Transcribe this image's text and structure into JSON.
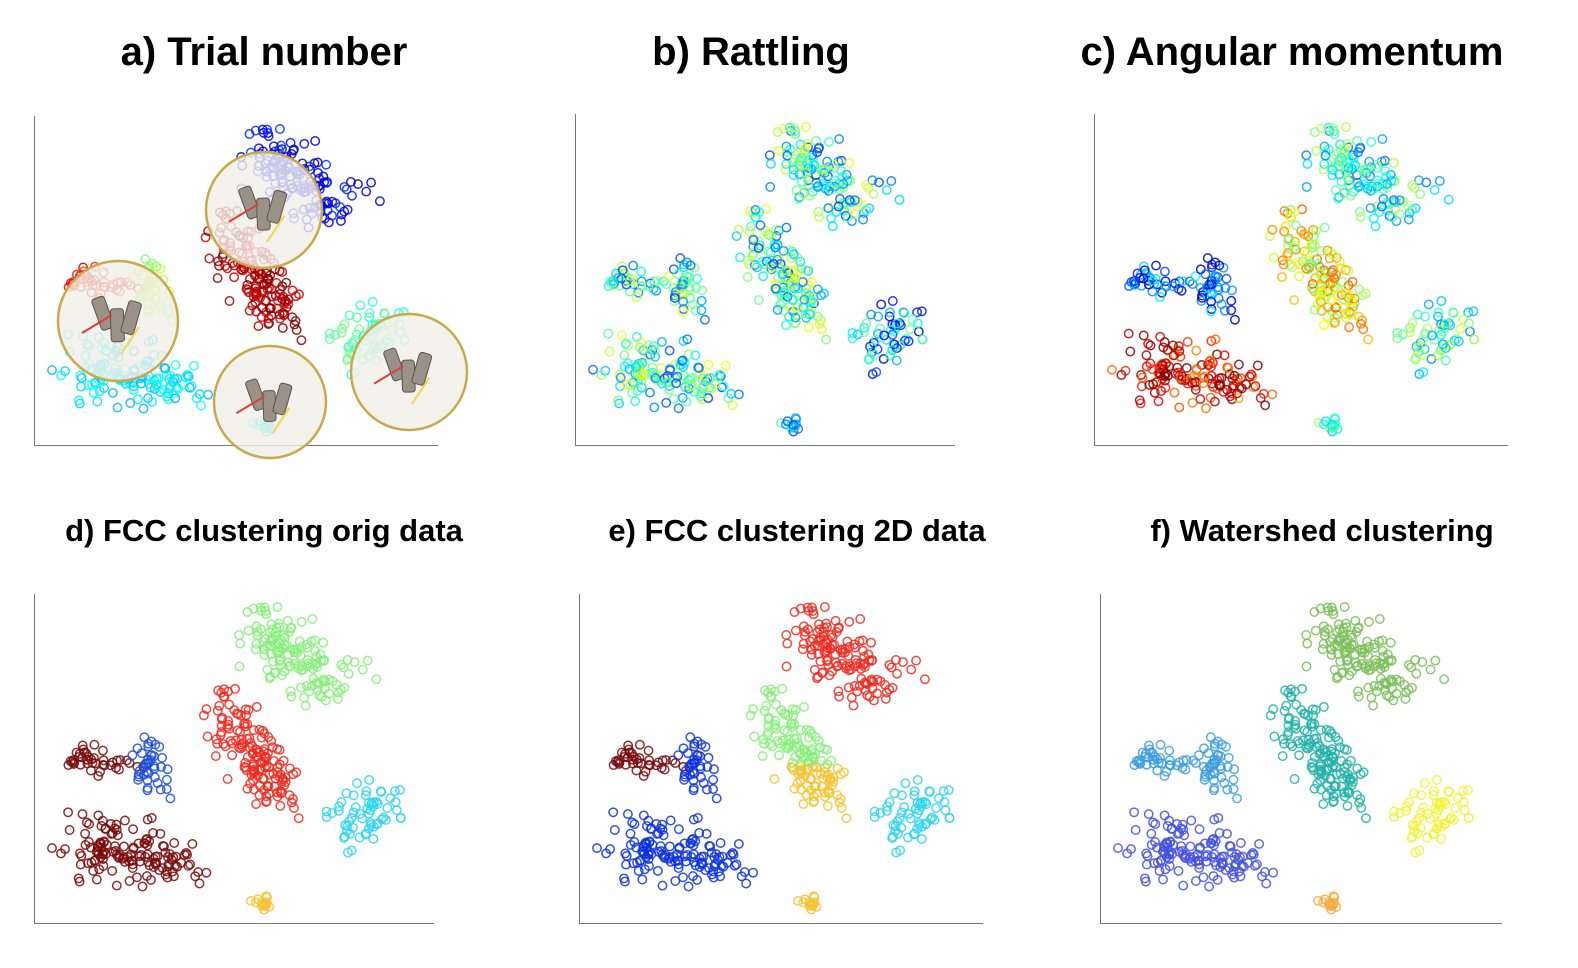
{
  "panels": [
    {
      "id": "a",
      "title": "a) Trial number"
    },
    {
      "id": "b",
      "title": "b) Rattling"
    },
    {
      "id": "c",
      "title": "c) Angular momentum"
    },
    {
      "id": "d",
      "title": "d) FCC clustering orig data"
    },
    {
      "id": "e",
      "title": "e) FCC clustering 2D data"
    },
    {
      "id": "f",
      "title": "f) Watershed clustering"
    }
  ],
  "chart_data": [
    {
      "type": "scatter",
      "title": "a) Trial number",
      "xlabel": "",
      "ylabel": "",
      "grid": false,
      "colormap": "jet",
      "inset_photos": 4
    },
    {
      "type": "scatter",
      "title": "b) Rattling",
      "xlabel": "",
      "ylabel": "",
      "grid": false,
      "colormap": "jet"
    },
    {
      "type": "scatter",
      "title": "c) Angular momentum",
      "xlabel": "",
      "ylabel": "",
      "grid": false,
      "colormap": "jet"
    },
    {
      "type": "scatter",
      "title": "d) FCC clustering orig data",
      "xlabel": "",
      "ylabel": "",
      "grid": false,
      "colors": [
        "#7a0a0a",
        "#1f4fd8",
        "#f02a20",
        "#86f07a",
        "#2fd3ef",
        "#f6c333"
      ]
    },
    {
      "type": "scatter",
      "title": "e) FCC clustering 2D data",
      "xlabel": "",
      "ylabel": "",
      "grid": false,
      "colors": [
        "#7a0a0a",
        "#0d33e0",
        "#86f07a",
        "#f6c333",
        "#f02a20",
        "#2fd3ef"
      ]
    },
    {
      "type": "scatter",
      "title": "f) Watershed clustering",
      "xlabel": "",
      "ylabel": "",
      "grid": false,
      "colors": [
        "#3d9de0",
        "#4451e0",
        "#22b3a8",
        "#7ac059",
        "#f3f23a",
        "#f6ac40"
      ]
    }
  ]
}
